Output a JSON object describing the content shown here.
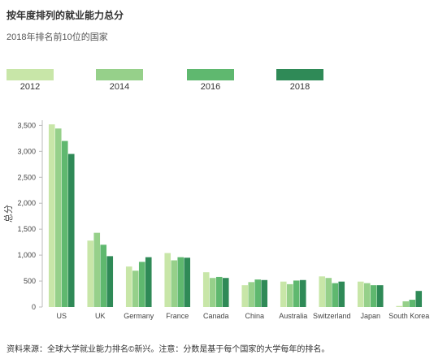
{
  "chart_data": {
    "type": "bar",
    "title": "按年度排列的就业能力总分",
    "subtitle": "2018年排名前10位的国家",
    "ylabel": "总分",
    "ylim": [
      0,
      3600
    ],
    "yticks": [
      0,
      500,
      1000,
      1500,
      2000,
      2500,
      3000,
      3500
    ],
    "ytick_labels": [
      "0",
      "500",
      "1,000",
      "1,500",
      "2,000",
      "2,500",
      "3,000",
      "3,500"
    ],
    "categories": [
      "US",
      "UK",
      "Germany",
      "France",
      "Canada",
      "China",
      "Australia",
      "Switzerland",
      "Japan",
      "South Korea"
    ],
    "series": [
      {
        "name": "2012",
        "color": "#c8e6a8",
        "values": [
          3520,
          1280,
          780,
          1040,
          670,
          420,
          490,
          590,
          490,
          20
        ]
      },
      {
        "name": "2014",
        "color": "#96d08a",
        "values": [
          3440,
          1430,
          700,
          900,
          560,
          480,
          440,
          560,
          460,
          110
        ]
      },
      {
        "name": "2016",
        "color": "#5fb86f",
        "values": [
          3200,
          1200,
          870,
          960,
          580,
          530,
          510,
          460,
          420,
          140
        ]
      },
      {
        "name": "2018",
        "color": "#2f8a57",
        "values": [
          2950,
          980,
          960,
          950,
          560,
          520,
          520,
          490,
          420,
          310
        ]
      }
    ],
    "grid": false,
    "legend_position": "top"
  },
  "footer": "资料来源：全球大学就业能力排名©新兴。注意：分数是基于每个国家的大学每年的排名。"
}
